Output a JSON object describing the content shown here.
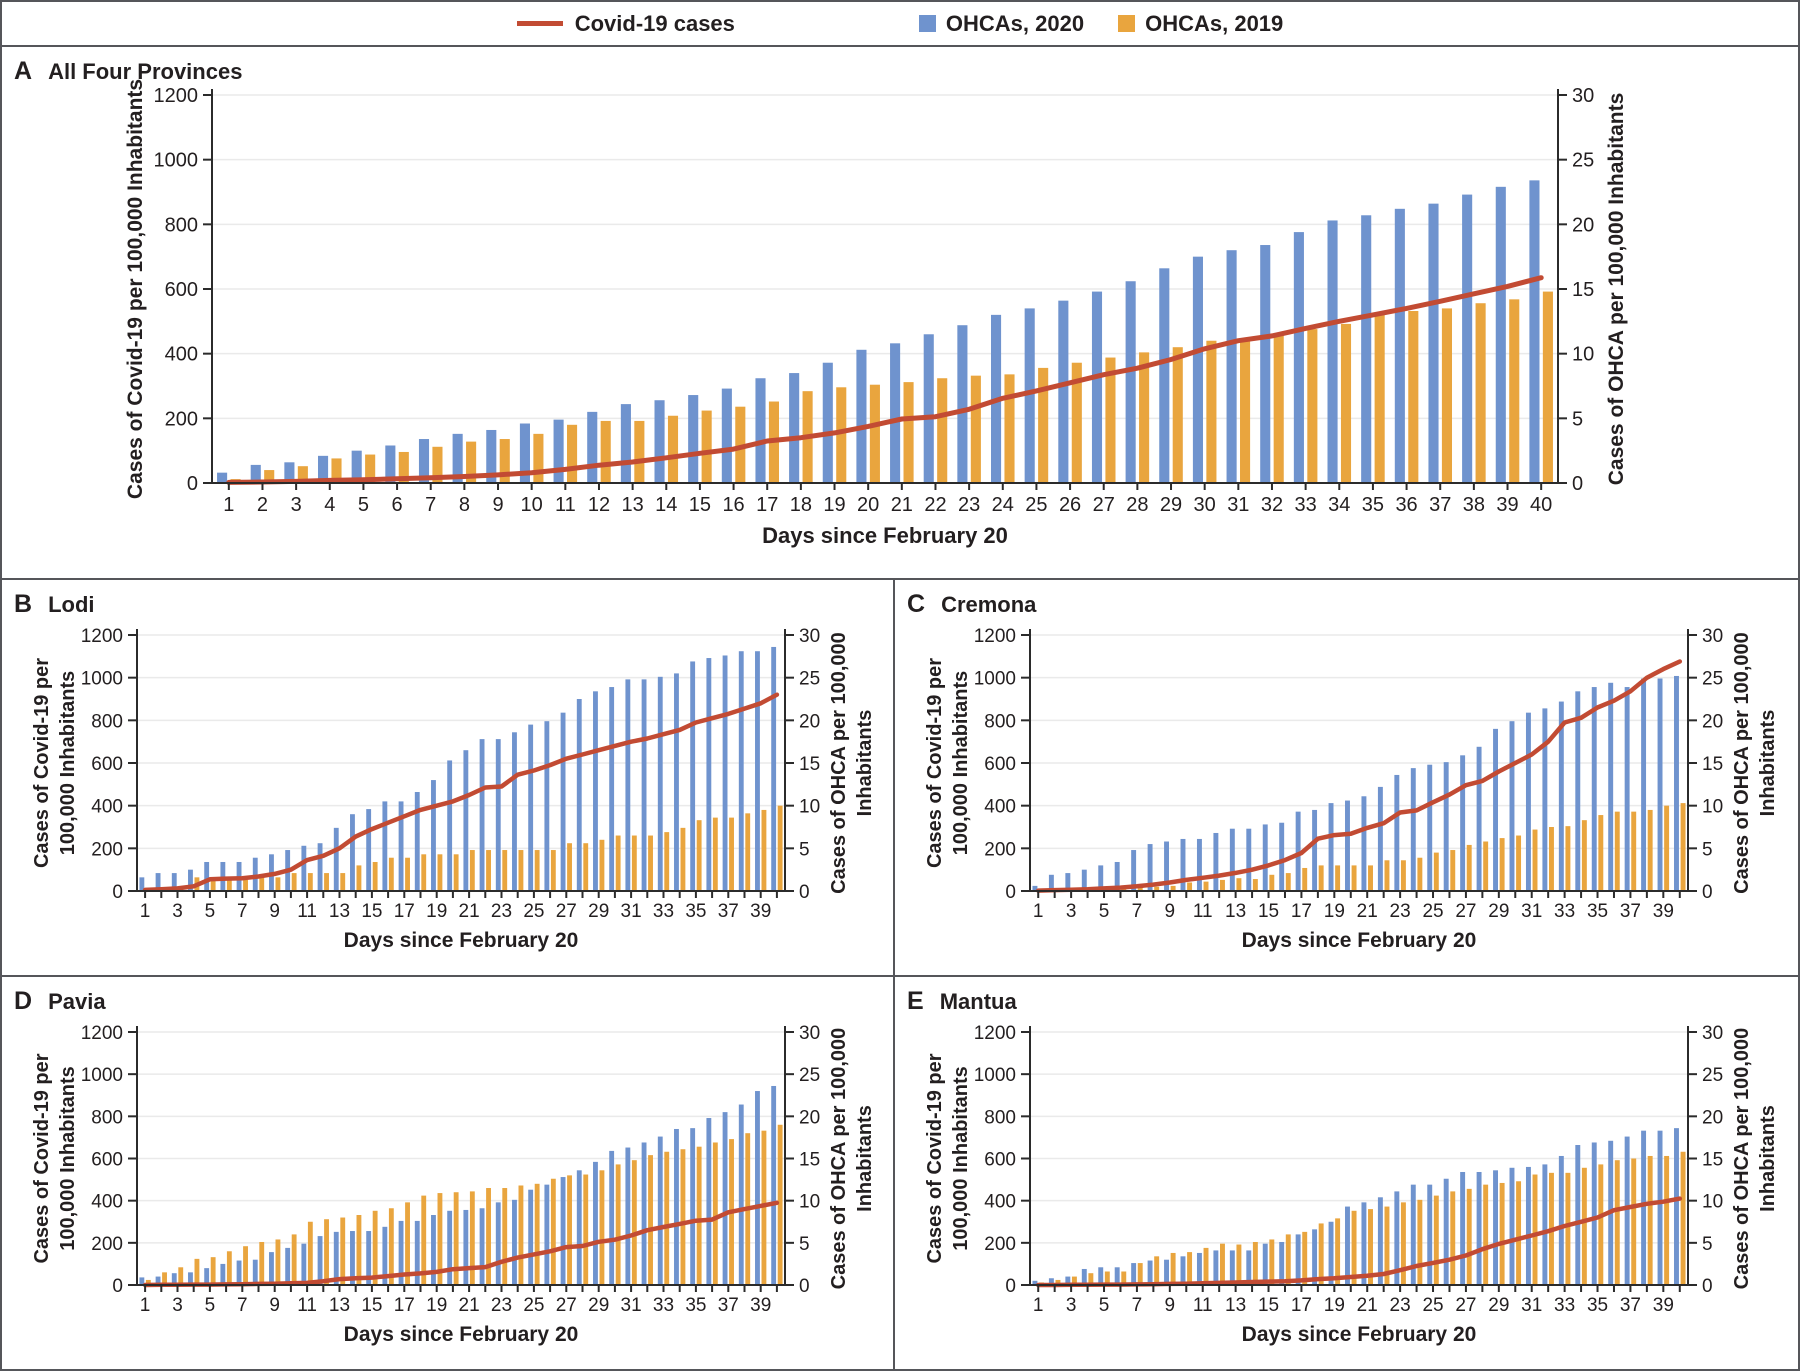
{
  "legend": {
    "items": [
      {
        "label": "Covid-19 cases",
        "swatch": "line",
        "color": "#c24b33"
      },
      {
        "label": "OHCAs, 2020",
        "swatch": "square",
        "color": "#6f93ce"
      },
      {
        "label": "OHCAs, 2019",
        "swatch": "square",
        "color": "#e9a53e"
      }
    ]
  },
  "colors": {
    "covid_line": "#c24b33",
    "ohca_2020": "#6f93ce",
    "ohca_2019": "#e9a53e",
    "axis": "#2b2b2b",
    "gridline": "#eaeaea",
    "text": "#231f20"
  },
  "chart_data": [
    {
      "panel_label": "A",
      "title": "All Four Provinces",
      "type": "bar+line",
      "x_axis": {
        "title": "Days since February 20",
        "days": 40,
        "label_every": 1
      },
      "left_axis": {
        "label_lines": [
          "Cases of Covid-19 per 100,000 Inhabitants"
        ],
        "min": 0,
        "max": 1200,
        "step": 200
      },
      "right_axis": {
        "label_lines": [
          "Cases of OHCA per 100,000 Inhabitants"
        ],
        "min": 0,
        "max": 30,
        "step": 5
      },
      "series": [
        {
          "name": "OHCAs, 2020",
          "type": "bar",
          "axis": "right",
          "color": "#6f93ce",
          "values": [
            0.8,
            1.4,
            1.6,
            2.1,
            2.5,
            2.9,
            3.4,
            3.8,
            4.1,
            4.6,
            4.9,
            5.5,
            6.1,
            6.4,
            6.8,
            7.3,
            8.1,
            8.5,
            9.3,
            10.3,
            10.8,
            11.5,
            12.2,
            13.0,
            13.5,
            14.1,
            14.8,
            15.6,
            16.6,
            17.5,
            18.0,
            18.4,
            19.4,
            20.3,
            20.7,
            21.2,
            21.6,
            22.3,
            22.9,
            23.4
          ]
        },
        {
          "name": "OHCAs, 2019",
          "type": "bar",
          "axis": "right",
          "color": "#e9a53e",
          "values": [
            0.3,
            1.0,
            1.3,
            1.9,
            2.2,
            2.4,
            2.8,
            3.2,
            3.4,
            3.8,
            4.5,
            4.8,
            4.8,
            5.2,
            5.6,
            5.9,
            6.3,
            7.1,
            7.4,
            7.6,
            7.8,
            8.1,
            8.3,
            8.4,
            8.9,
            9.3,
            9.7,
            10.1,
            10.5,
            11.0,
            11.1,
            11.6,
            11.9,
            12.3,
            13.0,
            13.3,
            13.5,
            13.9,
            14.2,
            14.8
          ]
        },
        {
          "name": "Covid-19 cases",
          "type": "line",
          "axis": "left",
          "color": "#c24b33",
          "values": [
            2,
            3,
            5,
            8,
            10,
            13,
            16,
            20,
            25,
            32,
            42,
            55,
            65,
            78,
            92,
            105,
            130,
            140,
            155,
            175,
            198,
            205,
            228,
            262,
            285,
            310,
            335,
            355,
            382,
            415,
            440,
            455,
            478,
            500,
            520,
            540,
            562,
            585,
            608,
            635
          ]
        }
      ]
    },
    {
      "panel_label": "B",
      "title": "Lodi",
      "type": "bar+line",
      "x_axis": {
        "title": "Days since February 20",
        "days": 40,
        "label_every": 2
      },
      "left_axis": {
        "label_lines": [
          "Cases of Covid-19 per",
          "100,000 Inhabitants"
        ],
        "min": 0,
        "max": 1200,
        "step": 200
      },
      "right_axis": {
        "label_lines": [
          "Cases of OHCA per 100,000",
          "Inhabitants"
        ],
        "min": 0,
        "max": 30,
        "step": 5
      },
      "series": [
        {
          "name": "OHCAs, 2020",
          "type": "bar",
          "axis": "right",
          "color": "#6f93ce",
          "values": [
            1.6,
            2.1,
            2.1,
            2.5,
            3.4,
            3.4,
            3.4,
            3.9,
            4.3,
            4.8,
            5.3,
            5.6,
            7.4,
            9.0,
            9.6,
            10.5,
            10.5,
            11.6,
            13.0,
            15.3,
            16.5,
            17.8,
            17.8,
            18.6,
            19.5,
            19.9,
            20.9,
            22.5,
            23.4,
            23.9,
            24.8,
            24.8,
            25.1,
            25.5,
            26.9,
            27.3,
            27.6,
            28.1,
            28.1,
            28.6
          ]
        },
        {
          "name": "OHCAs, 2019",
          "type": "bar",
          "axis": "right",
          "color": "#e9a53e",
          "values": [
            0.2,
            0.2,
            0.2,
            1.6,
            1.3,
            1.3,
            1.3,
            1.6,
            1.6,
            2.1,
            2.1,
            2.1,
            2.1,
            3.0,
            3.4,
            3.9,
            3.9,
            4.3,
            4.3,
            4.3,
            4.8,
            4.8,
            4.8,
            4.8,
            4.8,
            4.8,
            5.6,
            5.6,
            6.0,
            6.5,
            6.5,
            6.5,
            6.9,
            7.4,
            8.3,
            8.6,
            8.6,
            9.1,
            9.5,
            10.0
          ]
        },
        {
          "name": "Covid-19 cases",
          "type": "line",
          "axis": "left",
          "color": "#c24b33",
          "values": [
            5,
            8,
            12,
            22,
            55,
            58,
            60,
            68,
            80,
            100,
            145,
            165,
            200,
            255,
            290,
            320,
            350,
            380,
            400,
            420,
            450,
            485,
            490,
            545,
            565,
            590,
            620,
            640,
            660,
            680,
            700,
            715,
            735,
            755,
            790,
            810,
            830,
            855,
            880,
            920
          ]
        }
      ]
    },
    {
      "panel_label": "C",
      "title": "Cremona",
      "type": "bar+line",
      "x_axis": {
        "title": "Days since February 20",
        "days": 40,
        "label_every": 2
      },
      "left_axis": {
        "label_lines": [
          "Cases of Covid-19 per",
          "100,000 Inhabitants"
        ],
        "min": 0,
        "max": 1200,
        "step": 200
      },
      "right_axis": {
        "label_lines": [
          "Cases of OHCA per 100,000",
          "Inhabitants"
        ],
        "min": 0,
        "max": 30,
        "step": 5
      },
      "series": [
        {
          "name": "OHCAs, 2020",
          "type": "bar",
          "axis": "right",
          "color": "#6f93ce",
          "values": [
            0.6,
            1.9,
            2.1,
            2.5,
            3.0,
            3.4,
            4.8,
            5.5,
            5.8,
            6.1,
            6.1,
            6.8,
            7.3,
            7.3,
            7.8,
            8.0,
            9.3,
            9.5,
            10.3,
            10.6,
            11.1,
            12.2,
            13.6,
            14.4,
            14.8,
            15.1,
            15.9,
            16.9,
            19.0,
            19.9,
            20.9,
            21.4,
            22.2,
            23.4,
            23.9,
            24.4,
            23.9,
            24.9,
            24.9,
            25.2
          ]
        },
        {
          "name": "OHCAs, 2019",
          "type": "bar",
          "axis": "right",
          "color": "#e9a53e",
          "values": [
            0.1,
            0.3,
            0.2,
            0.4,
            0.3,
            0.3,
            0.4,
            0.5,
            0.6,
            1.0,
            1.1,
            1.3,
            1.5,
            1.4,
            1.9,
            2.1,
            2.7,
            3.0,
            3.0,
            3.0,
            3.0,
            3.6,
            3.6,
            3.9,
            4.5,
            4.8,
            5.4,
            5.8,
            6.2,
            6.5,
            7.2,
            7.5,
            7.6,
            8.3,
            8.9,
            9.3,
            9.3,
            9.5,
            10.0,
            10.3
          ]
        },
        {
          "name": "Covid-19 cases",
          "type": "line",
          "axis": "left",
          "color": "#c24b33",
          "values": [
            2,
            4,
            6,
            8,
            12,
            16,
            22,
            30,
            40,
            52,
            62,
            72,
            85,
            100,
            120,
            145,
            178,
            245,
            262,
            268,
            296,
            318,
            368,
            378,
            416,
            452,
            496,
            516,
            560,
            600,
            640,
            700,
            790,
            812,
            860,
            892,
            936,
            1000,
            1040,
            1076
          ]
        }
      ]
    },
    {
      "panel_label": "D",
      "title": "Pavia",
      "type": "bar+line",
      "x_axis": {
        "title": "Days since February 20",
        "days": 40,
        "label_every": 2
      },
      "left_axis": {
        "label_lines": [
          "Cases of Covid-19 per",
          "100,000 Inhabitants"
        ],
        "min": 0,
        "max": 1200,
        "step": 200
      },
      "right_axis": {
        "label_lines": [
          "Cases of OHCA per 100,000",
          "Inhabitants"
        ],
        "min": 0,
        "max": 30,
        "step": 5
      },
      "series": [
        {
          "name": "OHCAs, 2020",
          "type": "bar",
          "axis": "right",
          "color": "#6f93ce",
          "values": [
            0.9,
            1.0,
            1.4,
            1.5,
            2.0,
            2.5,
            2.9,
            3.0,
            3.9,
            4.4,
            4.9,
            5.8,
            6.3,
            6.4,
            6.4,
            6.9,
            7.6,
            7.6,
            8.3,
            8.8,
            8.9,
            9.1,
            9.8,
            10.1,
            11.3,
            11.9,
            12.8,
            13.6,
            14.6,
            15.9,
            16.3,
            16.9,
            17.6,
            18.5,
            18.6,
            19.8,
            20.5,
            21.4,
            23.0,
            23.6
          ]
        },
        {
          "name": "OHCAs, 2019",
          "type": "bar",
          "axis": "right",
          "color": "#e9a53e",
          "values": [
            0.6,
            1.5,
            2.1,
            3.1,
            3.3,
            4.0,
            4.6,
            5.1,
            5.4,
            6.0,
            7.5,
            7.8,
            8.0,
            8.3,
            8.8,
            9.1,
            9.8,
            10.6,
            10.9,
            11.0,
            11.1,
            11.5,
            11.5,
            11.8,
            12.0,
            12.6,
            13.0,
            13.1,
            13.6,
            14.3,
            14.8,
            15.4,
            15.8,
            16.1,
            16.4,
            16.9,
            17.3,
            18.0,
            18.3,
            19.0
          ]
        },
        {
          "name": "Covid-19 cases",
          "type": "line",
          "axis": "left",
          "color": "#c24b33",
          "values": [
            0,
            1,
            1,
            2,
            2,
            3,
            4,
            5,
            6,
            8,
            10,
            18,
            28,
            32,
            35,
            42,
            50,
            55,
            62,
            75,
            80,
            85,
            110,
            130,
            145,
            160,
            180,
            185,
            205,
            215,
            235,
            260,
            275,
            290,
            305,
            310,
            345,
            360,
            375,
            390
          ]
        }
      ]
    },
    {
      "panel_label": "E",
      "title": "Mantua",
      "type": "bar+line",
      "x_axis": {
        "title": "Days since February 20",
        "days": 40,
        "label_every": 2
      },
      "left_axis": {
        "label_lines": [
          "Cases of Covid-19 per",
          "100,000 Inhabitants"
        ],
        "min": 0,
        "max": 1200,
        "step": 200
      },
      "right_axis": {
        "label_lines": [
          "Cases of OHCA per 100,000",
          "Inhabitants"
        ],
        "min": 0,
        "max": 30,
        "step": 5
      },
      "series": [
        {
          "name": "OHCAs, 2020",
          "type": "bar",
          "axis": "right",
          "color": "#6f93ce",
          "values": [
            0.5,
            0.8,
            1.0,
            1.9,
            2.1,
            2.1,
            2.6,
            2.9,
            3.0,
            3.4,
            3.8,
            4.1,
            4.1,
            4.1,
            4.9,
            5.1,
            6.0,
            6.6,
            7.5,
            9.3,
            9.8,
            10.4,
            11.1,
            11.9,
            11.9,
            12.6,
            13.4,
            13.4,
            13.6,
            13.9,
            14.0,
            14.3,
            15.3,
            16.6,
            16.9,
            17.1,
            17.6,
            18.3,
            18.3,
            18.6
          ]
        },
        {
          "name": "OHCAs, 2019",
          "type": "bar",
          "axis": "right",
          "color": "#e9a53e",
          "values": [
            0.3,
            0.6,
            1.0,
            1.4,
            1.6,
            1.6,
            2.6,
            3.4,
            3.8,
            3.9,
            4.4,
            4.9,
            4.8,
            5.1,
            5.4,
            6.0,
            6.3,
            7.3,
            7.9,
            8.8,
            9.0,
            9.3,
            9.8,
            10.1,
            10.6,
            11.1,
            11.4,
            11.9,
            12.1,
            12.3,
            13.1,
            13.3,
            13.3,
            13.9,
            14.3,
            14.8,
            15.0,
            15.3,
            15.3,
            15.8
          ]
        },
        {
          "name": "Covid-19 cases",
          "type": "line",
          "axis": "left",
          "color": "#c24b33",
          "values": [
            0,
            0,
            1,
            1,
            2,
            2,
            3,
            4,
            5,
            6,
            8,
            10,
            12,
            14,
            16,
            18,
            22,
            28,
            32,
            38,
            44,
            52,
            70,
            90,
            105,
            120,
            140,
            170,
            195,
            215,
            235,
            255,
            280,
            300,
            320,
            355,
            370,
            385,
            395,
            410
          ]
        }
      ]
    }
  ]
}
